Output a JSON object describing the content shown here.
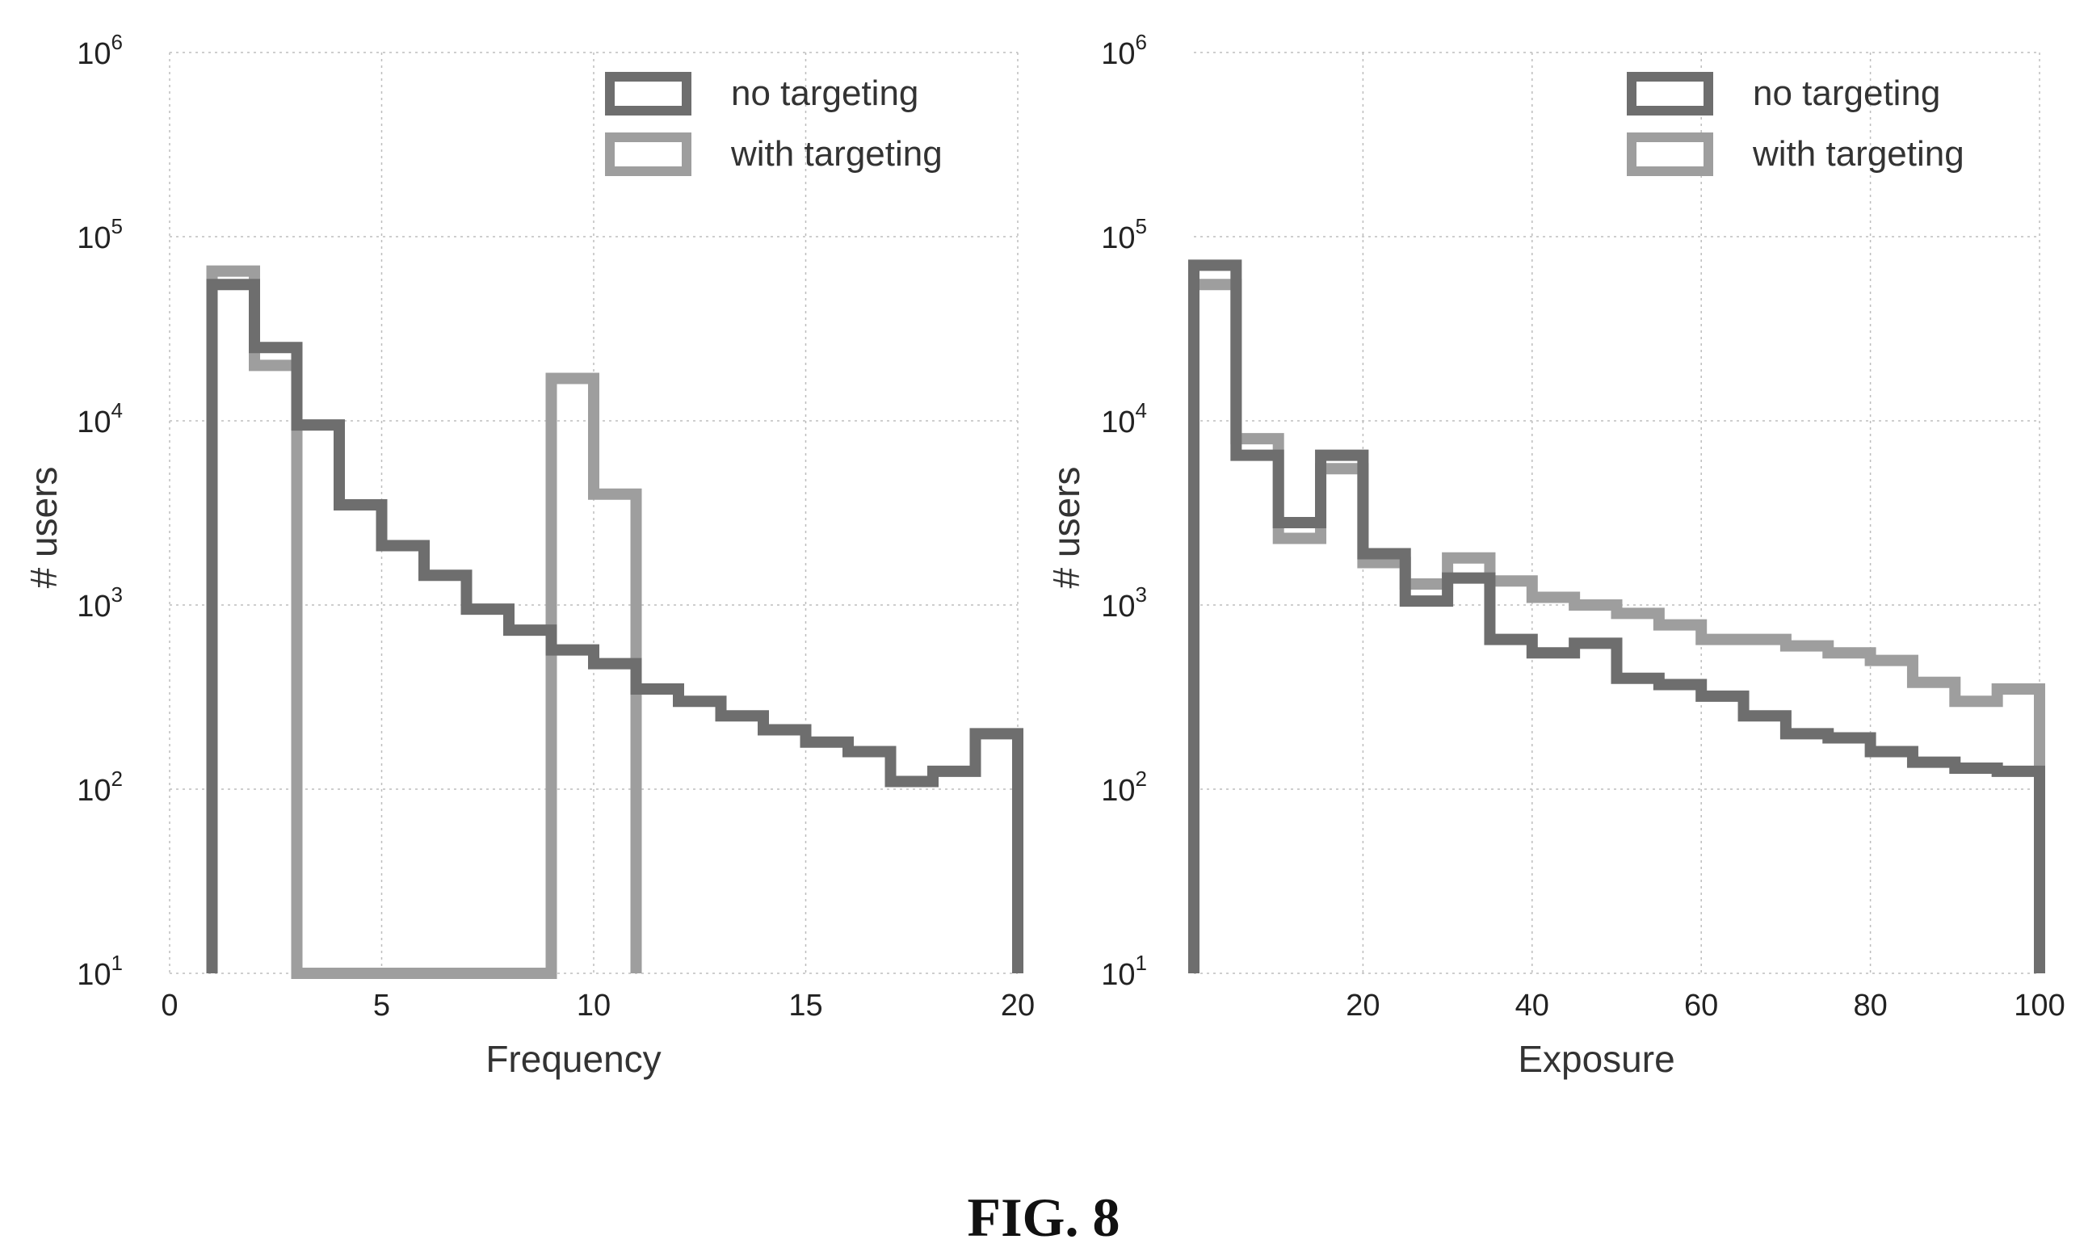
{
  "figure_caption": "FIG. 8",
  "colors": {
    "no_targeting": "#6e6e6e",
    "with_targeting": "#9e9e9e"
  },
  "chart_data": [
    {
      "type": "histogram",
      "xlabel": "Frequency",
      "ylabel": "# users",
      "xlim": [
        0,
        20
      ],
      "ylim": [
        10,
        1000000
      ],
      "yscale": "log",
      "grid": true,
      "legend_position": "top-right",
      "x_ticks": [
        0,
        5,
        10,
        15,
        20
      ],
      "y_ticks": [
        10,
        100,
        1000,
        10000,
        100000,
        1000000
      ],
      "y_tick_labels": [
        {
          "base": "10",
          "exp": "1"
        },
        {
          "base": "10",
          "exp": "2"
        },
        {
          "base": "10",
          "exp": "3"
        },
        {
          "base": "10",
          "exp": "4"
        },
        {
          "base": "10",
          "exp": "5"
        },
        {
          "base": "10",
          "exp": "6"
        }
      ],
      "series": [
        {
          "name": "no targeting",
          "color": "#6e6e6e",
          "bin_edges": [
            1,
            2,
            3,
            4,
            5,
            6,
            7,
            8,
            9,
            10,
            11,
            12,
            13,
            14,
            15,
            16,
            17,
            18,
            19,
            20
          ],
          "counts": [
            55000,
            25000,
            9500,
            3500,
            2100,
            1450,
            950,
            730,
            570,
            480,
            350,
            300,
            250,
            210,
            180,
            160,
            110,
            125,
            200
          ]
        },
        {
          "name": "with targeting",
          "color": "#9e9e9e",
          "bin_edges": [
            1,
            2,
            3,
            9,
            10,
            11
          ],
          "counts": [
            65000,
            20000,
            10,
            17000,
            4000
          ]
        }
      ]
    },
    {
      "type": "histogram",
      "xlabel": "Exposure",
      "ylabel": "# users",
      "xlim": [
        0,
        100
      ],
      "ylim": [
        10,
        1000000
      ],
      "yscale": "log",
      "grid": true,
      "legend_position": "top-right",
      "x_ticks": [
        20,
        40,
        60,
        80,
        100
      ],
      "y_ticks": [
        10,
        100,
        1000,
        10000,
        100000,
        1000000
      ],
      "y_tick_labels": [
        {
          "base": "10",
          "exp": "1"
        },
        {
          "base": "10",
          "exp": "2"
        },
        {
          "base": "10",
          "exp": "3"
        },
        {
          "base": "10",
          "exp": "4"
        },
        {
          "base": "10",
          "exp": "5"
        },
        {
          "base": "10",
          "exp": "6"
        }
      ],
      "series": [
        {
          "name": "no targeting",
          "color": "#6e6e6e",
          "bin_edges": [
            0,
            5,
            10,
            15,
            20,
            25,
            30,
            35,
            40,
            45,
            50,
            55,
            60,
            65,
            70,
            75,
            80,
            85,
            90,
            95,
            100
          ],
          "counts": [
            70000,
            6500,
            2800,
            6500,
            1900,
            1050,
            1400,
            650,
            550,
            620,
            400,
            370,
            320,
            250,
            200,
            190,
            160,
            140,
            130,
            125
          ]
        },
        {
          "name": "with targeting",
          "color": "#9e9e9e",
          "bin_edges": [
            0,
            5,
            10,
            15,
            20,
            25,
            30,
            35,
            40,
            45,
            50,
            55,
            60,
            65,
            70,
            75,
            80,
            85,
            90,
            95,
            100
          ],
          "counts": [
            55000,
            8000,
            2300,
            5500,
            1700,
            1300,
            1800,
            1350,
            1100,
            1000,
            900,
            780,
            650,
            650,
            600,
            550,
            500,
            380,
            300,
            350
          ]
        }
      ]
    }
  ]
}
